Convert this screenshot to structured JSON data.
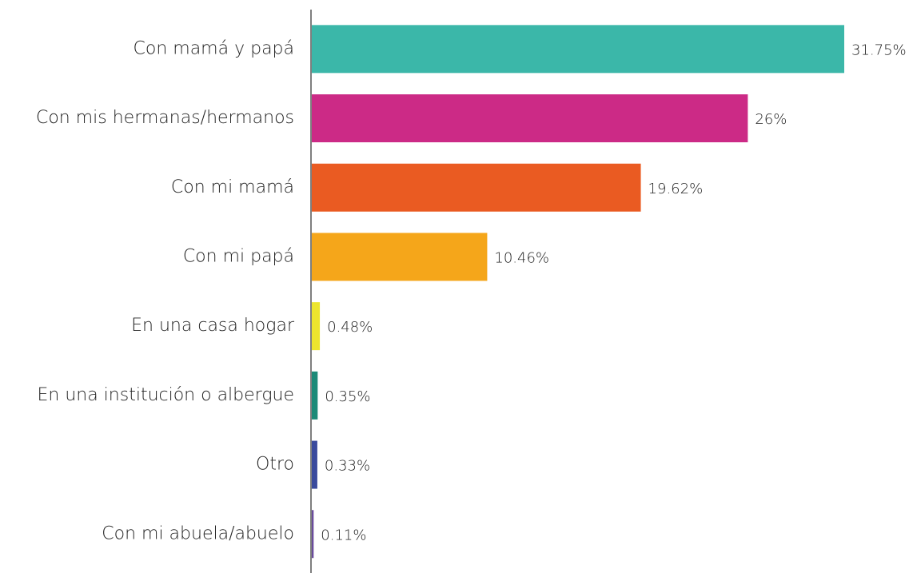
{
  "chart_data": {
    "type": "bar",
    "orientation": "horizontal",
    "categories": [
      "Con mamá y papá",
      "Con mis hermanas/hermanos",
      "Con mi mamá",
      "Con mi papá",
      "En una casa hogar",
      "En una institución o albergue",
      "Otro",
      "Con mi abuela/abuelo"
    ],
    "values": [
      31.75,
      26,
      19.62,
      10.46,
      0.48,
      0.35,
      0.33,
      0.11
    ],
    "value_labels": [
      "31.75%",
      "26%",
      "19.62%",
      "10.46%",
      "0.48%",
      "0.35%",
      "0.33%",
      "0.11%"
    ],
    "colors": [
      "#3bb7a9",
      "#cc2a86",
      "#ea5b22",
      "#f5a61a",
      "#ece52e",
      "#1b8a78",
      "#3a4a9d",
      "#6a4c9c"
    ]
  }
}
